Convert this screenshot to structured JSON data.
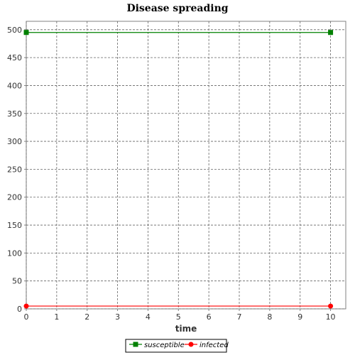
{
  "chart_data": {
    "type": "line",
    "title": "Disease spreading",
    "xlabel": "time",
    "ylabel": "",
    "xlim": [
      0,
      10.5
    ],
    "ylim": [
      0,
      515
    ],
    "xticks": [
      0,
      1,
      2,
      3,
      4,
      5,
      6,
      7,
      8,
      9,
      10
    ],
    "yticks": [
      0,
      50,
      100,
      150,
      200,
      250,
      300,
      350,
      400,
      450,
      500
    ],
    "grid": true,
    "legend_position": "bottom",
    "series": [
      {
        "name": "susceptible",
        "color": "#008000",
        "marker": "square",
        "x": [
          0,
          10
        ],
        "y": [
          495,
          495
        ]
      },
      {
        "name": "infected",
        "color": "#ff0000",
        "marker": "circle",
        "x": [
          0,
          10
        ],
        "y": [
          5,
          5
        ]
      }
    ]
  }
}
